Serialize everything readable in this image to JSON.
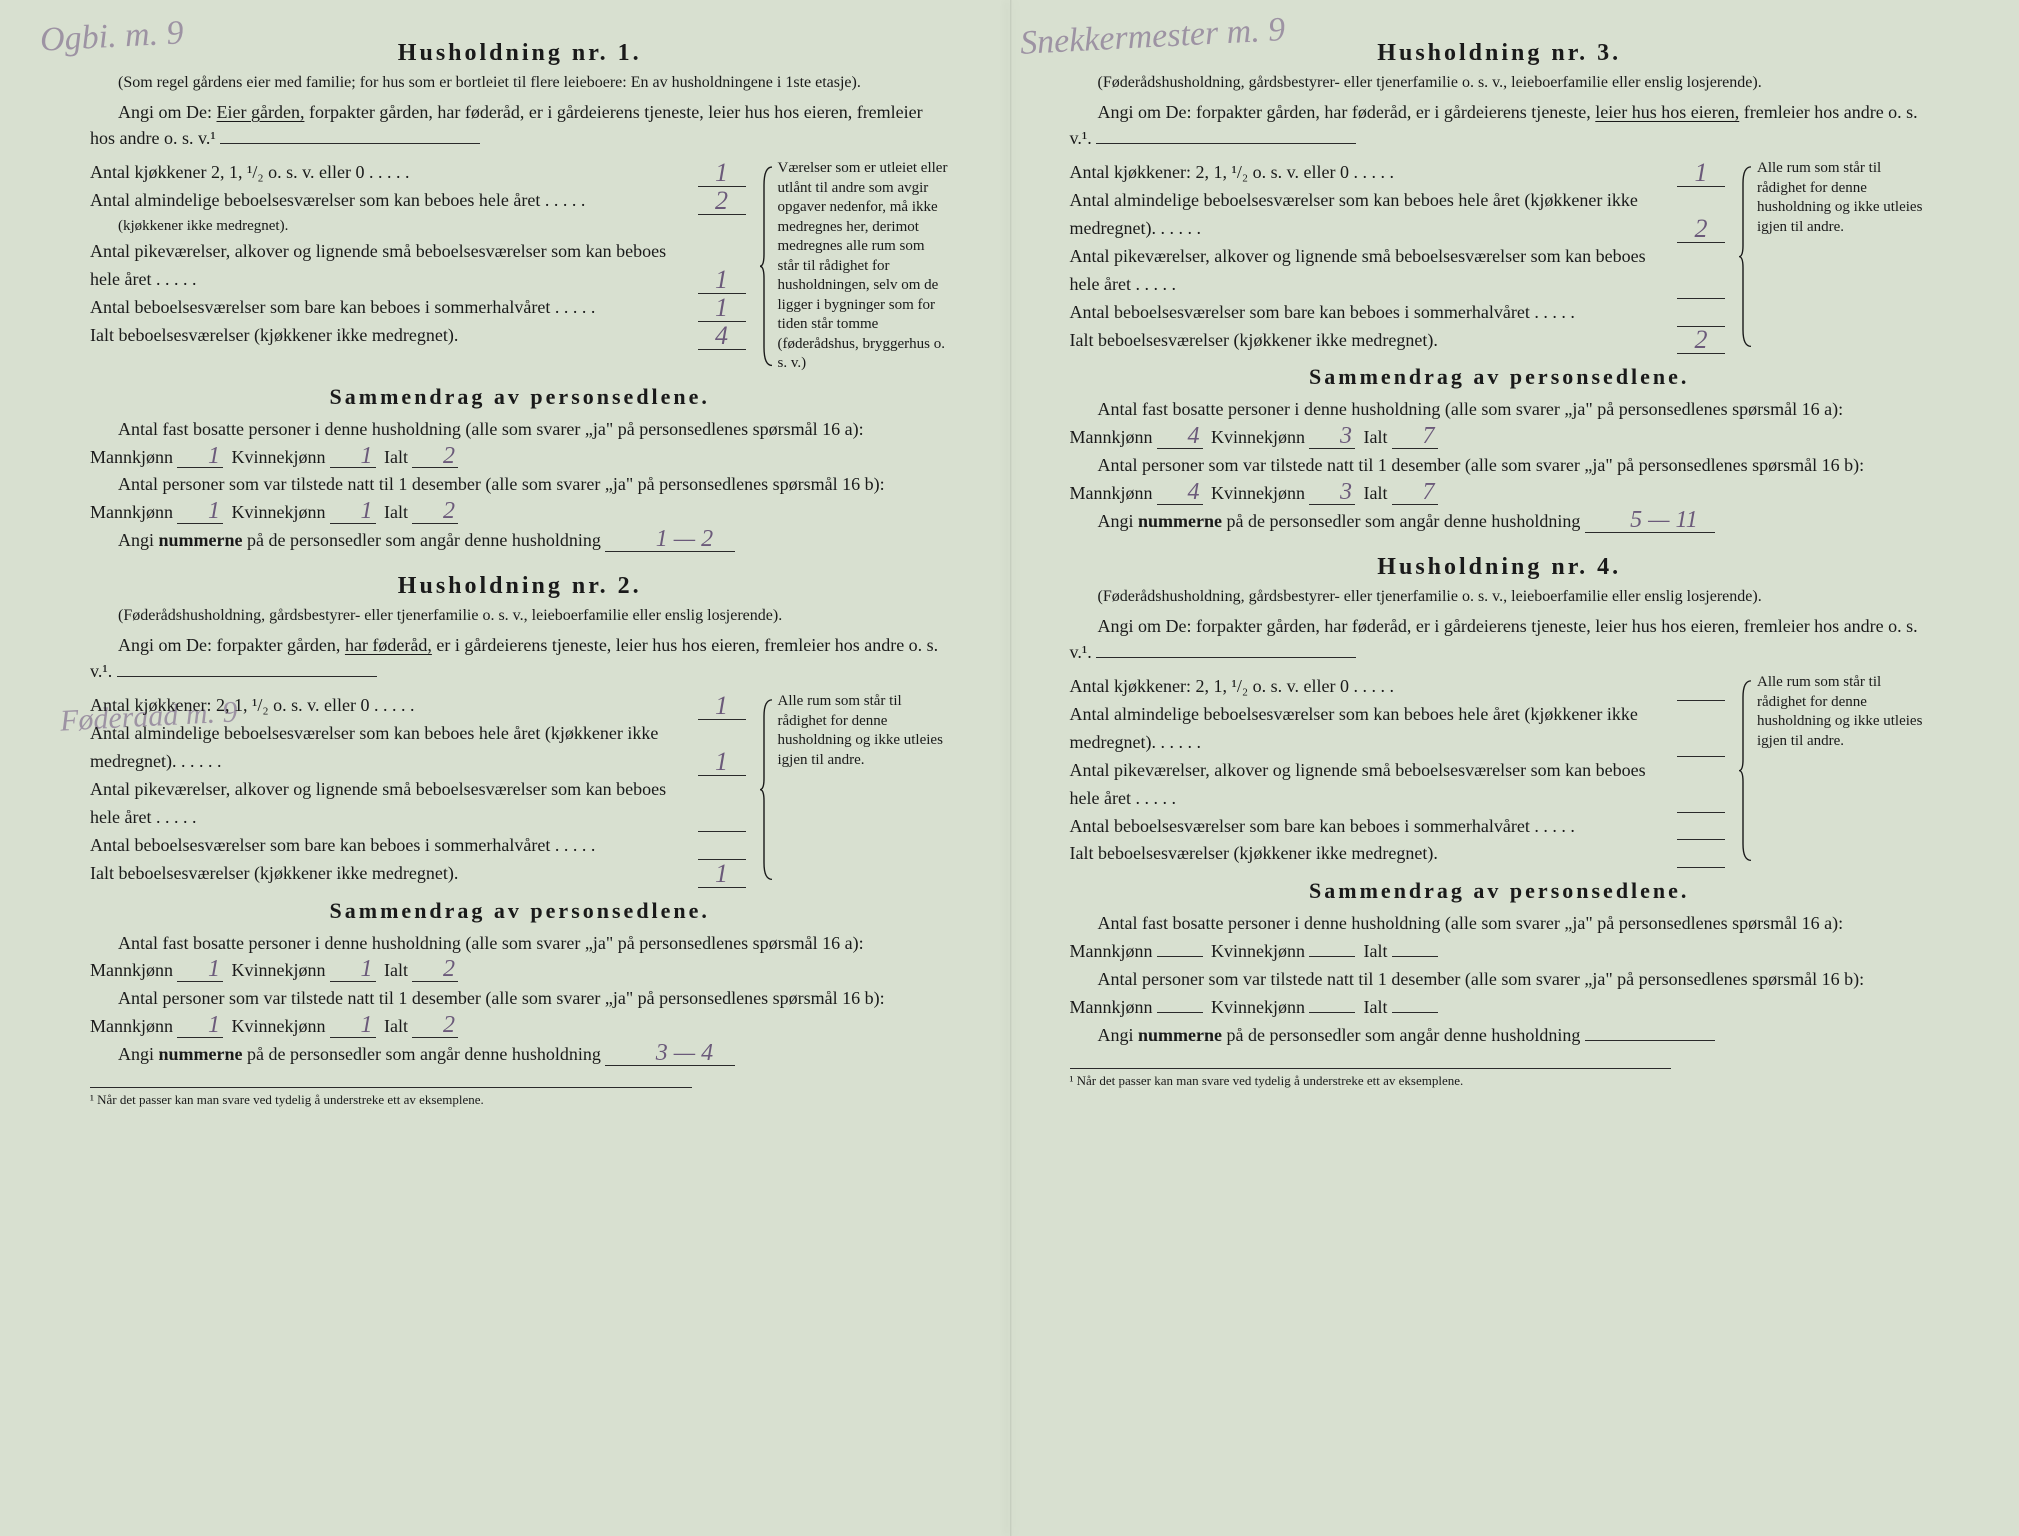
{
  "colors": {
    "paper": "#d8e0d0",
    "ink": "#1a1a1a",
    "pencil": "#6b5a7a"
  },
  "annotations": {
    "topLeft": "Ogbi. m. 9",
    "mid": "Føderaad m. 9",
    "topRight": "Snekkermester m. 9"
  },
  "households": [
    {
      "title": "Husholdning nr. 1.",
      "subnote": "(Som regel gårdens eier med familie; for hus som er bortleiet til flere leieboere: En av husholdningene i 1ste etasje).",
      "angi_pre": "Angi om De: ",
      "angi_underlined": "Eier gården,",
      "angi_rest": " forpakter gården, har føderåd, er i gårdeierens tjeneste, leier hus hos eieren, fremleier hos andre o. s. v.¹",
      "rows": [
        {
          "label": "Antal kjøkkener 2, 1, ¹/₂ o. s. v. eller 0",
          "val": "1"
        },
        {
          "label": "Antal almindelige beboelsesværelser som kan beboes hele året",
          "sublabel": "(kjøkkener ikke medregnet).",
          "val": "2"
        },
        {
          "label": "Antal pikeværelser, alkover og lignende små beboelsesværelser som kan beboes hele året",
          "val": "1"
        },
        {
          "label": "Antal beboelsesværelser som bare kan beboes i sommerhalvåret",
          "val": "1"
        },
        {
          "label": "Ialt beboelsesværelser (kjøkkener ikke medregnet).",
          "val": "4"
        }
      ],
      "sidebar": "Værelser som er utleiet eller utlånt til andre som avgir opgaver nedenfor, må ikke medregnes her, derimot medregnes alle rum som står til rådighet for husholdningen, selv om de ligger i bygninger som for tiden står tomme (føderådshus, bryggerhus o. s. v.)",
      "samm": {
        "title": "Sammendrag av personsedlene.",
        "p1_pre": "Antal fast bosatte personer i denne husholdning (alle som svarer „ja\" på personsedlenes spørsmål 16 a): Mannkjønn",
        "p1_m": "1",
        "p1_k": "1",
        "p1_ialt": "2",
        "p2_pre": "Antal personer som var tilstede natt til 1 desember (alle som svarer „ja\" på personsedlenes spørsmål 16 b): Mannkjønn",
        "p2_m": "1",
        "p2_k": "1",
        "p2_ialt": "2",
        "p3_pre": "Angi ",
        "p3_bold": "nummerne",
        "p3_post": " på de personsedler som angår denne husholdning",
        "p3_val": "1 — 2"
      }
    },
    {
      "title": "Husholdning nr. 2.",
      "subnote": "(Føderådshusholdning, gårdsbestyrer- eller tjenerfamilie o. s. v., leieboerfamilie eller enslig losjerende).",
      "angi_pre": "Angi om De:  forpakter gården, ",
      "angi_underlined": "har føderåd,",
      "angi_rest": " er i gårdeierens tjeneste, leier hus hos eieren, fremleier hos andre o. s. v.¹.",
      "rows": [
        {
          "label": "Antal kjøkkener: 2, 1, ¹/₂ o. s. v. eller 0",
          "val": "1"
        },
        {
          "label": "Antal almindelige beboelsesværelser som kan beboes hele året (kjøkkener ikke medregnet).",
          "val": "1"
        },
        {
          "label": "Antal pikeværelser, alkover og lignende små beboelsesværelser som kan beboes hele året",
          "val": ""
        },
        {
          "label": "Antal beboelsesværelser som bare kan beboes i sommerhalvåret",
          "val": ""
        },
        {
          "label": "Ialt beboelsesværelser (kjøkkener ikke medregnet).",
          "val": "1"
        }
      ],
      "sidebar": "Alle rum som står til rådighet for denne husholdning og ikke utleies igjen til andre.",
      "samm": {
        "title": "Sammendrag av personsedlene.",
        "p1_pre": "Antal fast bosatte personer i denne husholdning (alle som svarer „ja\" på personsedlenes spørsmål 16 a): Mannkjønn",
        "p1_m": "1",
        "p1_k": "1",
        "p1_ialt": "2",
        "p2_pre": "Antal personer som var tilstede natt til 1 desember (alle som svarer „ja\" på personsedlenes spørsmål 16 b): Mannkjønn",
        "p2_m": "1",
        "p2_k": "1",
        "p2_ialt": "2",
        "p3_pre": "Angi ",
        "p3_bold": "nummerne",
        "p3_post": " på de personsedler som angår denne husholdning",
        "p3_val": "3 — 4"
      }
    },
    {
      "title": "Husholdning nr. 3.",
      "subnote": "(Føderådshusholdning, gårdsbestyrer- eller tjenerfamilie o. s. v., leieboerfamilie eller enslig losjerende).",
      "angi_pre": "Angi om De:  forpakter gården, har føderåd, er i gårdeierens tjeneste, ",
      "angi_underlined": "leier hus hos eieren,",
      "angi_rest": " fremleier hos andre o. s. v.¹.",
      "rows": [
        {
          "label": "Antal kjøkkener: 2, 1, ¹/₂ o. s. v. eller 0",
          "val": "1"
        },
        {
          "label": "Antal almindelige beboelsesværelser som kan beboes hele året (kjøkkener ikke medregnet).",
          "val": "2"
        },
        {
          "label": "Antal pikeværelser, alkover og lignende små beboelsesværelser som kan beboes hele året",
          "val": ""
        },
        {
          "label": "Antal beboelsesværelser som bare kan beboes i sommerhalvåret",
          "val": ""
        },
        {
          "label": "Ialt beboelsesværelser (kjøkkener ikke medregnet).",
          "val": "2"
        }
      ],
      "sidebar": "Alle rum som står til rådighet for denne husholdning og ikke utleies igjen til andre.",
      "samm": {
        "title": "Sammendrag av personsedlene.",
        "p1_pre": "Antal fast bosatte personer i denne husholdning (alle som svarer „ja\" på personsedlenes spørsmål 16 a): Mannkjønn",
        "p1_m": "4",
        "p1_k": "3",
        "p1_ialt": "7",
        "p2_pre": "Antal personer som var tilstede natt til 1 desember (alle som svarer „ja\" på personsedlenes spørsmål 16 b): Mannkjønn",
        "p2_m": "4",
        "p2_k": "3",
        "p2_ialt": "7",
        "p3_pre": "Angi ",
        "p3_bold": "nummerne",
        "p3_post": " på de personsedler som angår denne husholdning",
        "p3_val": "5 — 11"
      }
    },
    {
      "title": "Husholdning nr. 4.",
      "subnote": "(Føderådshusholdning, gårdsbestyrer- eller tjenerfamilie o. s. v., leieboerfamilie eller enslig losjerende).",
      "angi_pre": "Angi om De:  forpakter gården, har føderåd, er i gårdeierens tjeneste, leier hus hos eieren, fremleier hos andre o. s. v.¹.",
      "angi_underlined": "",
      "angi_rest": "",
      "rows": [
        {
          "label": "Antal kjøkkener: 2, 1, ¹/₂ o. s. v. eller 0",
          "val": ""
        },
        {
          "label": "Antal almindelige beboelsesværelser som kan beboes hele året (kjøkkener ikke medregnet).",
          "val": ""
        },
        {
          "label": "Antal pikeværelser, alkover og lignende små beboelsesværelser som kan beboes hele året",
          "val": ""
        },
        {
          "label": "Antal beboelsesværelser som bare kan beboes i sommerhalvåret",
          "val": ""
        },
        {
          "label": "Ialt beboelsesværelser (kjøkkener ikke medregnet).",
          "val": ""
        }
      ],
      "sidebar": "Alle rum som står til rådighet for denne husholdning og ikke utleies igjen til andre.",
      "samm": {
        "title": "Sammendrag av personsedlene.",
        "p1_pre": "Antal fast bosatte personer i denne husholdning (alle som svarer „ja\" på personsedlenes spørsmål 16 a): Mannkjønn",
        "p1_m": "",
        "p1_k": "",
        "p1_ialt": "",
        "p2_pre": "Antal personer som var tilstede natt til 1 desember (alle som svarer „ja\" på personsedlenes spørsmål 16 b): Mannkjønn",
        "p2_m": "",
        "p2_k": "",
        "p2_ialt": "",
        "p3_pre": "Angi ",
        "p3_bold": "nummerne",
        "p3_post": " på de personsedler som angår denne husholdning",
        "p3_val": ""
      }
    }
  ],
  "labels": {
    "kvinnekjonn": "Kvinnekjønn",
    "ialt": "Ialt"
  },
  "footnote": "¹ Når det passer kan man svare ved tydelig å understreke ett av eksemplene."
}
